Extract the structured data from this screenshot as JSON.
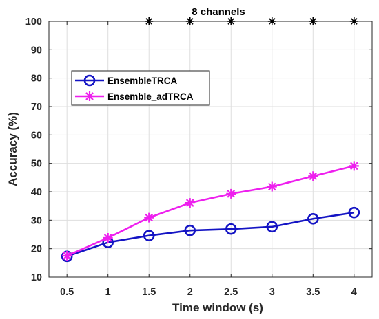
{
  "chart_data": {
    "type": "line",
    "title": "8 channels",
    "xlabel": "Time window (s)",
    "ylabel": "Accuracy (%)",
    "x": [
      0.5,
      1,
      1.5,
      2,
      2.5,
      3,
      3.5,
      4
    ],
    "xlim": [
      0.28,
      4.22
    ],
    "ylim": [
      10,
      100
    ],
    "xticks": [
      0.5,
      1,
      1.5,
      2,
      2.5,
      3,
      3.5,
      4
    ],
    "xticklabels": [
      "0.5",
      "1",
      "1.5",
      "2",
      "2.5",
      "3",
      "3.5",
      "4"
    ],
    "yticks": [
      10,
      20,
      30,
      40,
      50,
      60,
      70,
      80,
      90,
      100
    ],
    "yticklabels": [
      "10",
      "20",
      "30",
      "40",
      "50",
      "60",
      "70",
      "80",
      "90",
      "100"
    ],
    "grid": true,
    "legend": {
      "placement": "upper-left"
    },
    "series": [
      {
        "name": "EnsembleTRCA",
        "color": "#1414c4",
        "marker": "circle",
        "line": true,
        "values": [
          17.3,
          22.2,
          24.6,
          26.4,
          26.9,
          27.7,
          30.5,
          32.7
        ]
      },
      {
        "name": "Ensemble_adTRCA",
        "color": "#ee1fee",
        "marker": "asterisk",
        "line": true,
        "values": [
          17.5,
          23.8,
          30.9,
          36.1,
          39.3,
          41.8,
          45.5,
          49.1
        ]
      },
      {
        "color": "#000000",
        "marker": "asterisk",
        "line": false,
        "values": [
          null,
          null,
          100,
          100,
          100,
          100,
          100,
          100
        ]
      }
    ]
  }
}
